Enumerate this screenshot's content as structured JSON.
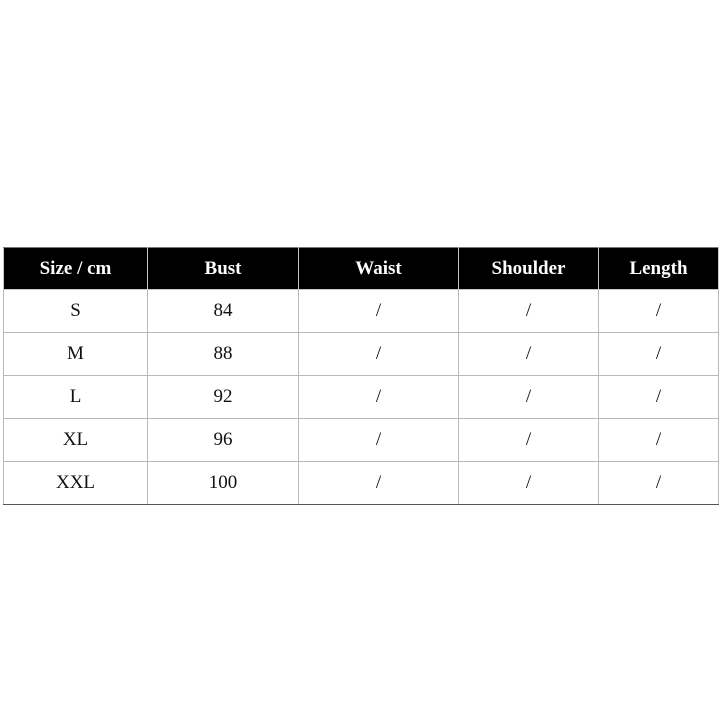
{
  "table": {
    "headers": [
      "Size / cm",
      "Bust",
      "Waist",
      "Shoulder",
      "Length"
    ],
    "rows": [
      [
        "S",
        "84",
        "/",
        "/",
        "/"
      ],
      [
        "M",
        "88",
        "/",
        "/",
        "/"
      ],
      [
        "L",
        "92",
        "/",
        "/",
        "/"
      ],
      [
        "XL",
        "96",
        "/",
        "/",
        "/"
      ],
      [
        "XXL",
        "100",
        "/",
        "/",
        "/"
      ]
    ]
  }
}
